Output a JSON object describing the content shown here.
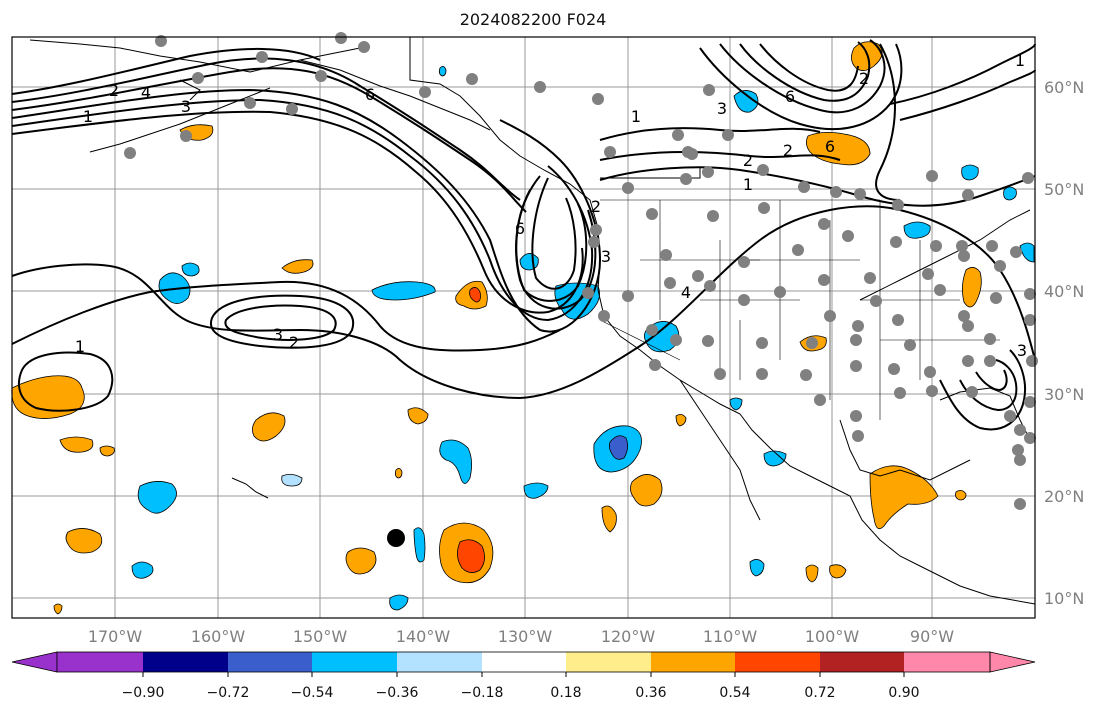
{
  "title": "2024082200 F024",
  "map": {
    "lon_ticks": [
      "170°W",
      "160°W",
      "150°W",
      "140°W",
      "130°W",
      "120°W",
      "110°W",
      "100°W",
      "90°W"
    ],
    "lat_ticks": [
      "60°N",
      "50°N",
      "40°N",
      "30°N",
      "20°N",
      "10°N"
    ],
    "contour_labels": [
      "1",
      "2",
      "3",
      "4",
      "6",
      "1",
      "3",
      "2",
      "1",
      "6",
      "3",
      "2",
      "1",
      "2",
      "4",
      "6",
      "2",
      "3",
      "6",
      "1",
      "2",
      "3"
    ]
  },
  "colorbar": {
    "tick_labels": [
      "−0.90",
      "−0.72",
      "−0.54",
      "−0.36",
      "−0.18",
      "0.18",
      "0.36",
      "0.54",
      "0.72",
      "0.90"
    ],
    "colors": [
      "#9932cc",
      "#00008b",
      "#3a5fcd",
      "#00bfff",
      "#b2e2ff",
      "#ffffff",
      "#ffec8b",
      "#ffa500",
      "#ff4500",
      "#b22222",
      "#ff88aa"
    ]
  },
  "shading": {
    "blue": "#00bfff",
    "dark_blue": "#3a5fcd",
    "orange": "#ffa500",
    "red": "#ff4500",
    "dot": "#808080"
  }
}
